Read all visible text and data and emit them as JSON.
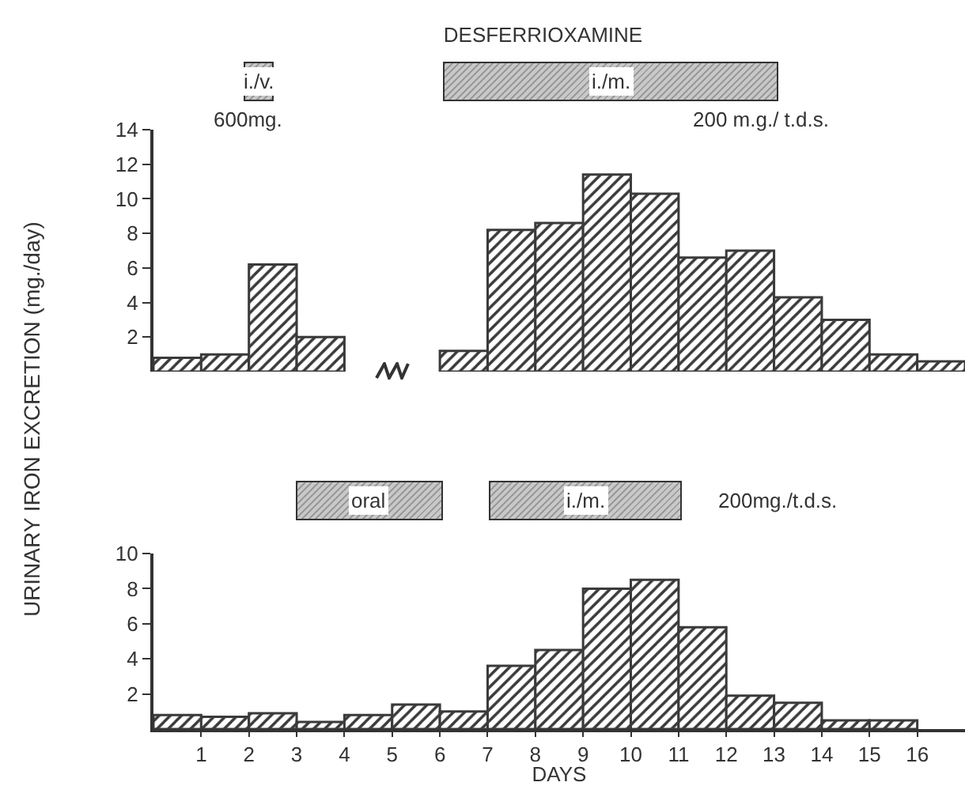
{
  "chart_data": [
    {
      "type": "bar",
      "title": "DESFERRIOXAMINE",
      "ylabel": "URINARY IRON EXCRETION (mg./day)",
      "x": [
        0.5,
        1.5,
        2.5,
        3.5,
        6.5,
        7.5,
        8.5,
        9.5,
        10.5,
        11.5,
        12.5,
        13.5,
        14.5,
        15.5,
        16.5
      ],
      "values": [
        0.8,
        1.0,
        6.2,
        2.0,
        1.2,
        8.2,
        8.6,
        11.4,
        10.3,
        6.6,
        7.0,
        4.3,
        3.0,
        1.0,
        0.6
      ],
      "color": "#3a3a3a",
      "xlim": [
        0,
        17
      ],
      "ylim": [
        0,
        14
      ],
      "yticks": [
        2,
        4,
        6,
        8,
        10,
        12,
        14
      ],
      "tick_labels": "y",
      "grid": false,
      "annotations": [
        "i./v.",
        "600mg.",
        "i./m.",
        "200 m.g./ t.d.s."
      ]
    },
    {
      "type": "histogram",
      "xlabel": "DAYS",
      "bins": [
        0,
        1,
        2,
        3,
        4,
        5,
        6,
        7,
        8,
        9,
        10,
        11,
        12,
        13,
        14,
        15,
        16
      ],
      "values": [
        0.8,
        0.7,
        0.9,
        0.4,
        0.8,
        1.4,
        1.0,
        3.6,
        4.5,
        8.0,
        8.5,
        5.8,
        1.9,
        1.5,
        0.5,
        0.5
      ],
      "color": "#3a3a3a",
      "xlim": [
        0,
        17
      ],
      "xticks": [
        1,
        2,
        3,
        4,
        5,
        6,
        7,
        8,
        9,
        10,
        11,
        12,
        13,
        14,
        15,
        16
      ],
      "ylim": [
        0,
        10
      ],
      "yticks": [
        2,
        4,
        6,
        8,
        10
      ],
      "grid": false,
      "annotations": [
        "oral",
        "i./m.",
        "200mg./t.d.s."
      ]
    }
  ]
}
